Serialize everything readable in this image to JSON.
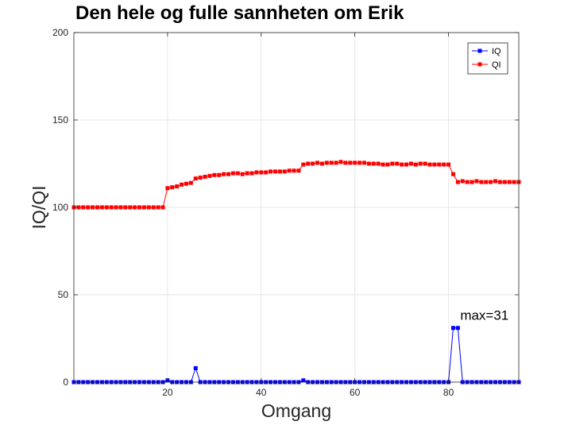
{
  "chart_data": {
    "type": "line",
    "title": "Den hele og fulle sannheten om Erik",
    "xlabel": "Omgang",
    "ylabel": "IQ/QI",
    "xlim": [
      0,
      95
    ],
    "ylim": [
      0,
      200
    ],
    "xticks": [
      20,
      40,
      60,
      80
    ],
    "yticks": [
      0,
      50,
      100,
      150,
      200
    ],
    "grid": true,
    "legend_position": "top-right",
    "x": [
      0,
      1,
      2,
      3,
      4,
      5,
      6,
      7,
      8,
      9,
      10,
      11,
      12,
      13,
      14,
      15,
      16,
      17,
      18,
      19,
      20,
      21,
      22,
      23,
      24,
      25,
      26,
      27,
      28,
      29,
      30,
      31,
      32,
      33,
      34,
      35,
      36,
      37,
      38,
      39,
      40,
      41,
      42,
      43,
      44,
      45,
      46,
      47,
      48,
      49,
      50,
      51,
      52,
      53,
      54,
      55,
      56,
      57,
      58,
      59,
      60,
      61,
      62,
      63,
      64,
      65,
      66,
      67,
      68,
      69,
      70,
      71,
      72,
      73,
      74,
      75,
      76,
      77,
      78,
      79,
      80,
      81,
      82,
      83,
      84,
      85,
      86,
      87,
      88,
      89,
      90,
      91,
      92,
      93,
      94,
      95
    ],
    "series": [
      {
        "name": "IQ",
        "color": "#0000ff",
        "marker": "square",
        "values": [
          0,
          0,
          0,
          0,
          0,
          0,
          0,
          0,
          0,
          0,
          0,
          0,
          0,
          0,
          0,
          0,
          0,
          0,
          0,
          0,
          1,
          0,
          0,
          0,
          0,
          0,
          8,
          0,
          0,
          0,
          0,
          0,
          0,
          0,
          0,
          0,
          0,
          0,
          0,
          0,
          0,
          0,
          0,
          0,
          0,
          0,
          0,
          0,
          0,
          1,
          0,
          0,
          0,
          0,
          0,
          0,
          0,
          0,
          0,
          0,
          0,
          0,
          0,
          0,
          0,
          0,
          0,
          0,
          0,
          0,
          0,
          0,
          0,
          0,
          0,
          0,
          0,
          0,
          0,
          0,
          0,
          31,
          31,
          0,
          0,
          0,
          0,
          0,
          0,
          0,
          0,
          0,
          0,
          0,
          0,
          0
        ]
      },
      {
        "name": "QI",
        "color": "#ff0000",
        "marker": "square",
        "values": [
          100,
          100,
          100,
          100,
          100,
          100,
          100,
          100,
          100,
          100,
          100,
          100,
          100,
          100,
          100,
          100,
          100,
          100,
          100,
          100,
          111,
          111.5,
          112,
          113,
          113.5,
          114,
          116.5,
          117,
          117.5,
          118,
          118.5,
          118.5,
          119,
          119,
          119.5,
          119.5,
          119,
          119.5,
          119.5,
          120,
          120,
          120,
          120.5,
          120.5,
          120.5,
          120.5,
          121,
          121,
          121,
          124.5,
          125,
          125,
          125.5,
          125,
          125.5,
          125.5,
          125.5,
          126,
          125.5,
          125.5,
          125.5,
          125.5,
          125.5,
          125,
          125,
          125,
          124.5,
          124.5,
          125,
          125,
          124.5,
          124.5,
          125,
          124.5,
          125,
          125,
          124.5,
          124.5,
          124.5,
          124.5,
          124.5,
          119,
          114.5,
          115,
          114.5,
          114.5,
          115,
          114.5,
          114.5,
          114.5,
          115,
          114.5,
          114.5,
          114.5,
          114.5,
          114.5
        ]
      }
    ],
    "annotations": [
      {
        "text": "max=31",
        "x": 82.5,
        "y": 38
      }
    ]
  }
}
